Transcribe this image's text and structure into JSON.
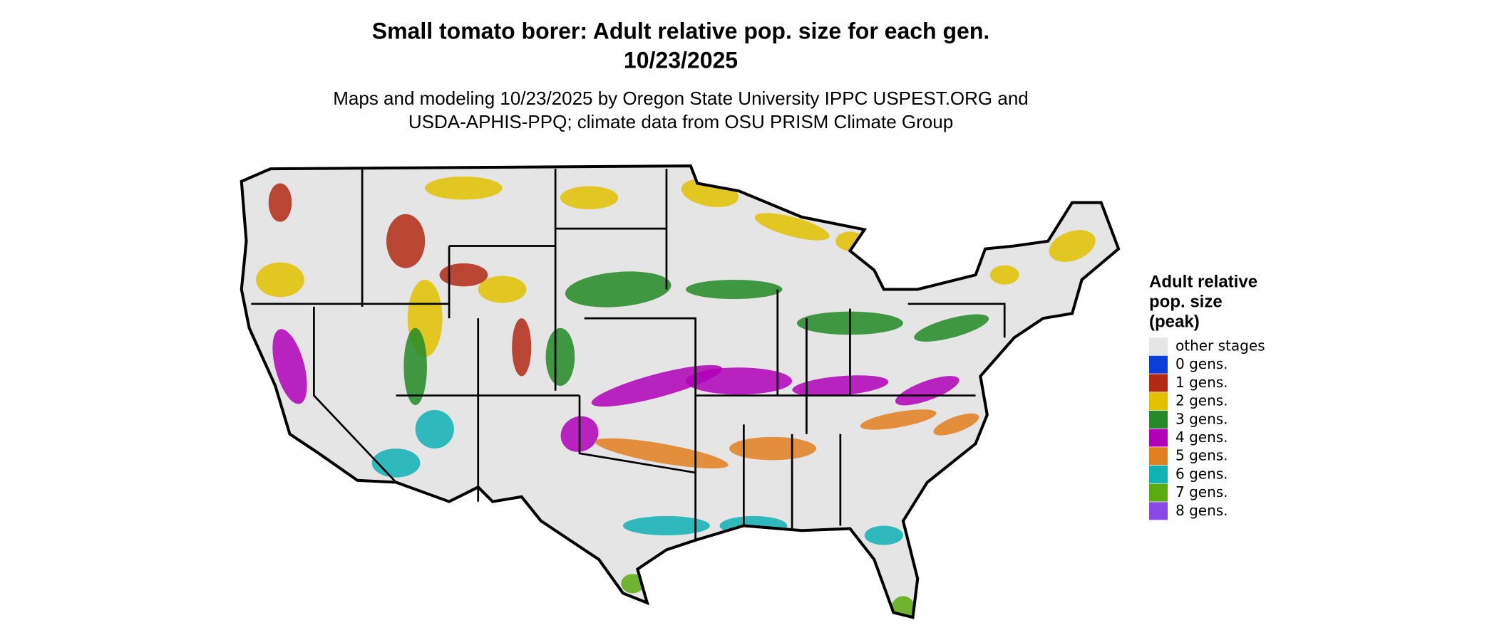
{
  "header": {
    "title": "Small tomato borer: Adult relative pop. size for each gen.",
    "date": "10/23/2025",
    "subtitle_lines": [
      "Maps and modeling 10/23/2025 by Oregon State University IPPC USPEST.ORG and",
      "USDA-APHIS-PPQ; climate data from OSU PRISM Climate Group"
    ]
  },
  "legend": {
    "title_lines": [
      "Adult relative",
      "pop. size",
      "(peak)"
    ],
    "items": [
      {
        "label": "other stages",
        "color": "#e5e5e5"
      },
      {
        "label": "0 gens.",
        "color": "#0a3fdc"
      },
      {
        "label": "1 gens.",
        "color": "#b22a14"
      },
      {
        "label": "2 gens.",
        "color": "#e2c200"
      },
      {
        "label": "3 gens.",
        "color": "#238a26"
      },
      {
        "label": "4 gens.",
        "color": "#b000b8"
      },
      {
        "label": "5 gens.",
        "color": "#e27f1e"
      },
      {
        "label": "6 gens.",
        "color": "#10b2b6"
      },
      {
        "label": "7 gens.",
        "color": "#5aaa10"
      },
      {
        "label": "8 gens.",
        "color": "#8a48e6"
      }
    ]
  }
}
